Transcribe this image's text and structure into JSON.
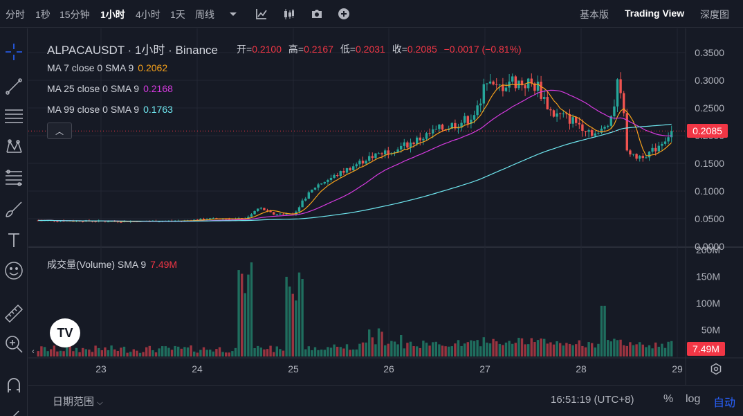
{
  "toolbar": {
    "intervals": [
      {
        "label": "分时",
        "active": false
      },
      {
        "label": "1秒",
        "active": false
      },
      {
        "label": "15分钟",
        "active": false
      },
      {
        "label": "1小时",
        "active": true
      },
      {
        "label": "4小时",
        "active": false
      },
      {
        "label": "1天",
        "active": false
      },
      {
        "label": "周线",
        "active": false
      }
    ],
    "icons": [
      "chevron-down-icon",
      "indicators-icon",
      "candle-type-icon",
      "camera-icon",
      "add-icon"
    ],
    "views": [
      {
        "label": "基本版",
        "active": false
      },
      {
        "label": "Trading View",
        "active": true
      },
      {
        "label": "深度图",
        "active": false
      }
    ]
  },
  "left_tools": [
    "crosshair-icon",
    "trend-line-icon",
    "horizontal-lines-icon",
    "pattern-icon",
    "fib-icon",
    "brush-icon",
    "text-icon",
    "emoji-icon",
    "ruler-icon",
    "zoom-icon",
    "magnet-icon"
  ],
  "legend": {
    "symbol": "ALPACAUSDT",
    "interval": "1小时",
    "exchange": "Binance",
    "sep": "·",
    "open_label": "开=",
    "open": "0.2100",
    "high_label": "高=",
    "high": "0.2167",
    "low_label": "低=",
    "low": "0.2031",
    "close_label": "收=",
    "close": "0.2085",
    "change": "−0.0017 (−0.81%)",
    "ma": [
      {
        "label": "MA 7 close 0 SMA 9",
        "value": "0.2062",
        "color": "#f7a21b"
      },
      {
        "label": "MA 25 close 0 SMA 9",
        "value": "0.2168",
        "color": "#d63ae0"
      },
      {
        "label": "MA 99 close 0 SMA 9",
        "value": "0.1763",
        "color": "#6fe7f0"
      }
    ],
    "collapse_glyph": "︿",
    "volume_label": "成交量(Volume) SMA 9",
    "volume_value": "7.49M"
  },
  "price_axis": {
    "ticks": [
      "0.3500",
      "0.3000",
      "0.2500",
      "0.2000",
      "0.1500",
      "0.1000",
      "0.0500",
      "0.0000"
    ],
    "current": "0.2085"
  },
  "volume_axis": {
    "ticks": [
      "200M",
      "150M",
      "100M",
      "50M"
    ],
    "current": "7.49M"
  },
  "time_axis": {
    "ticks": [
      "23",
      "24",
      "25",
      "26",
      "27",
      "28",
      "29"
    ]
  },
  "colors": {
    "up": "#26a69a",
    "down": "#ef5350",
    "up_vol": "#1f6e5e",
    "down_vol": "#9b3440",
    "bg": "#161a25"
  },
  "bottom": {
    "date_range": "日期范围",
    "clock": "16:51:19 (UTC+8)",
    "opts": [
      {
        "label": "%",
        "active": false
      },
      {
        "label": "log",
        "active": false
      },
      {
        "label": "自动",
        "active": true
      }
    ]
  },
  "tv_logo": "TV"
}
